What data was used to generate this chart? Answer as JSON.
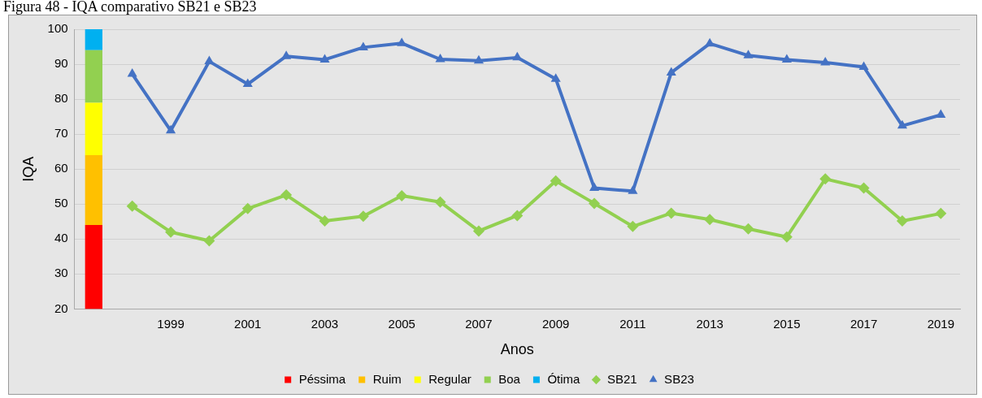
{
  "chart_data": {
    "type": "line",
    "title": "Figura 48 - IQA comparativo SB21 e SB23",
    "xlabel": "Anos",
    "ylabel": "IQA",
    "categories": [
      null,
      null,
      "1999",
      null,
      "2001",
      null,
      "2003",
      null,
      "2005",
      null,
      "2007",
      null,
      "2009",
      null,
      "2011",
      null,
      "2013",
      null,
      "2015",
      null,
      "2017",
      null,
      "2019"
    ],
    "ylim": [
      20,
      100
    ],
    "yticks": [
      20,
      30,
      40,
      50,
      60,
      70,
      80,
      90,
      100
    ],
    "grid": "y",
    "legend": "bottom",
    "series": [
      {
        "name": "Péssima",
        "type": "bar",
        "color": "#ff0000",
        "base": [
          20,
          null,
          null,
          null,
          null,
          null,
          null,
          null,
          null,
          null,
          null,
          null,
          null,
          null,
          null,
          null,
          null,
          null,
          null,
          null,
          null,
          null,
          null
        ],
        "values": [
          24,
          null,
          null,
          null,
          null,
          null,
          null,
          null,
          null,
          null,
          null,
          null,
          null,
          null,
          null,
          null,
          null,
          null,
          null,
          null,
          null,
          null,
          null
        ]
      },
      {
        "name": "Ruim",
        "type": "bar",
        "color": "#ffc000",
        "base": [
          44,
          null,
          null,
          null,
          null,
          null,
          null,
          null,
          null,
          null,
          null,
          null,
          null,
          null,
          null,
          null,
          null,
          null,
          null,
          null,
          null,
          null,
          null
        ],
        "values": [
          20,
          null,
          null,
          null,
          null,
          null,
          null,
          null,
          null,
          null,
          null,
          null,
          null,
          null,
          null,
          null,
          null,
          null,
          null,
          null,
          null,
          null,
          null
        ]
      },
      {
        "name": "Regular",
        "type": "bar",
        "color": "#ffff00",
        "base": [
          64,
          null,
          null,
          null,
          null,
          null,
          null,
          null,
          null,
          null,
          null,
          null,
          null,
          null,
          null,
          null,
          null,
          null,
          null,
          null,
          null,
          null,
          null
        ],
        "values": [
          15,
          null,
          null,
          null,
          null,
          null,
          null,
          null,
          null,
          null,
          null,
          null,
          null,
          null,
          null,
          null,
          null,
          null,
          null,
          null,
          null,
          null,
          null
        ]
      },
      {
        "name": "Boa",
        "type": "bar",
        "color": "#92d050",
        "base": [
          79,
          null,
          null,
          null,
          null,
          null,
          null,
          null,
          null,
          null,
          null,
          null,
          null,
          null,
          null,
          null,
          null,
          null,
          null,
          null,
          null,
          null,
          null
        ],
        "values": [
          15,
          null,
          null,
          null,
          null,
          null,
          null,
          null,
          null,
          null,
          null,
          null,
          null,
          null,
          null,
          null,
          null,
          null,
          null,
          null,
          null,
          null,
          null
        ]
      },
      {
        "name": "Ótima",
        "type": "bar",
        "color": "#00b0f0",
        "base": [
          94,
          null,
          null,
          null,
          null,
          null,
          null,
          null,
          null,
          null,
          null,
          null,
          null,
          null,
          null,
          null,
          null,
          null,
          null,
          null,
          null,
          null,
          null
        ],
        "values": [
          6,
          null,
          null,
          null,
          null,
          null,
          null,
          null,
          null,
          null,
          null,
          null,
          null,
          null,
          null,
          null,
          null,
          null,
          null,
          null,
          null,
          null,
          null
        ]
      },
      {
        "name": "SB21",
        "marker": "diamond",
        "color": "#92d050",
        "values": [
          null,
          49.4,
          42,
          39.5,
          48.7,
          52.6,
          45.2,
          46.5,
          52.4,
          50.6,
          42.3,
          46.7,
          56.6,
          50.2,
          43.6,
          47.4,
          45.6,
          42.9,
          40.6,
          57.2,
          54.6,
          45.2,
          47.3
        ]
      },
      {
        "name": "SB23",
        "marker": "triangle",
        "color": "#4472c4",
        "values": [
          null,
          87.2,
          71,
          90.8,
          84.3,
          92.3,
          91.3,
          94.8,
          96,
          91.4,
          91,
          91.9,
          85.8,
          54.6,
          53.7,
          87.6,
          95.9,
          92.5,
          91.3,
          90.5,
          89.2,
          72.4,
          75.5
        ]
      }
    ]
  }
}
